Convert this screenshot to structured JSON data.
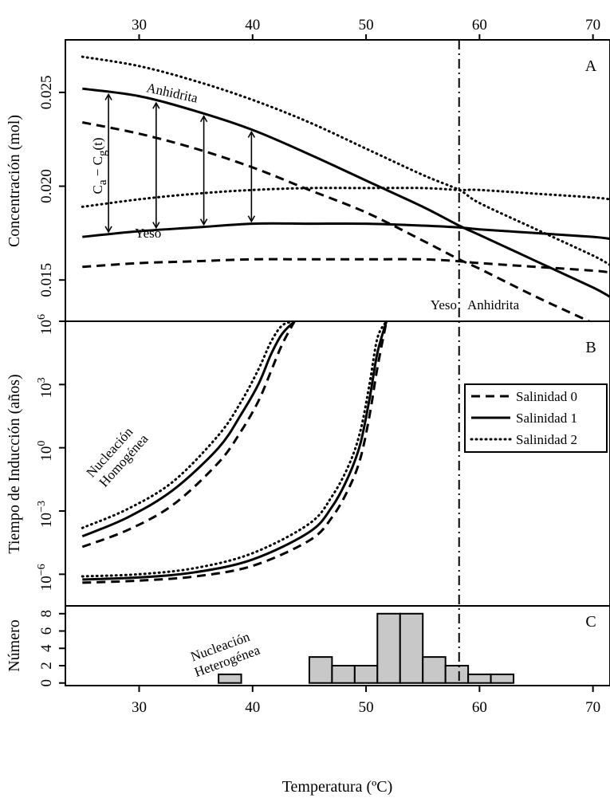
{
  "chart_data": [
    {
      "panel": "A",
      "type": "line",
      "ylabel": "Concentración (mol)",
      "xlim": [
        23.5,
        71.5
      ],
      "ylim": [
        0.0128,
        0.0278
      ],
      "x_ticks": [
        30,
        40,
        50,
        60,
        70
      ],
      "y_ticks": [
        0.015,
        0.02,
        0.025
      ],
      "y_tick_labels": [
        "0.015",
        "0.020",
        "0.025"
      ],
      "x": [
        25,
        30,
        35,
        40,
        45,
        50,
        55,
        58.2,
        60,
        65,
        70,
        71.5
      ],
      "series": [
        {
          "group": "Anhidrita",
          "salinidad": 0,
          "style": "dashed",
          "values": [
            0.0234,
            0.0228,
            0.022,
            0.021,
            0.0198,
            0.0186,
            0.0171,
            0.0161,
            0.0156,
            0.0141,
            0.0127,
            0.0122
          ]
        },
        {
          "group": "Anhidrita",
          "salinidad": 1,
          "style": "solid",
          "values": [
            0.0252,
            0.0248,
            0.024,
            0.023,
            0.0217,
            0.0203,
            0.0189,
            0.0179,
            0.0174,
            0.016,
            0.0146,
            0.0141
          ]
        },
        {
          "group": "Anhidrita",
          "salinidad": 2,
          "style": "dotted",
          "values": [
            0.0269,
            0.0264,
            0.0256,
            0.0246,
            0.0234,
            0.022,
            0.0206,
            0.0198,
            0.0191,
            0.0177,
            0.0163,
            0.0158
          ]
        },
        {
          "group": "Yeso",
          "salinidad": 0,
          "style": "dashed",
          "values": [
            0.0157,
            0.0159,
            0.016,
            0.0161,
            0.0161,
            0.0161,
            0.0161,
            0.016,
            0.0159,
            0.0157,
            0.0155,
            0.0154
          ]
        },
        {
          "group": "Yeso",
          "salinidad": 1,
          "style": "solid",
          "values": [
            0.0173,
            0.0176,
            0.0178,
            0.018,
            0.018,
            0.018,
            0.0179,
            0.0178,
            0.0177,
            0.0175,
            0.0173,
            0.0172
          ]
        },
        {
          "group": "Yeso",
          "salinidad": 2,
          "style": "dotted",
          "values": [
            0.0189,
            0.0193,
            0.0196,
            0.0198,
            0.0199,
            0.0199,
            0.0199,
            0.0198,
            0.0198,
            0.0196,
            0.0194,
            0.0193
          ]
        }
      ],
      "arrows_x": [
        27.3,
        31.5,
        35.7,
        39.9
      ],
      "transition_x": 58.2,
      "labels": {
        "anhydrite": "Anhidrita",
        "gypsum": "Yeso",
        "left_region": "Yeso",
        "right_region": "Anhidrita",
        "ca": "C",
        "ca_sub": "a",
        "minus": " − ",
        "cg": "C",
        "cg_sub": "g",
        "cg_t": "(t)"
      }
    },
    {
      "panel": "B",
      "type": "line",
      "ylabel": "Tiempo de Inducción (años)",
      "y_scale": "log10",
      "ylim_exp": [
        -7.5,
        6
      ],
      "y_ticks_exp": [
        -6,
        -3,
        0,
        3,
        6
      ],
      "y_tick_base": "10",
      "y_tick_sups": [
        "−6",
        "−3",
        "0",
        "3",
        "6"
      ],
      "x_homo": [
        25,
        29,
        33,
        37,
        39,
        40.5,
        41.6,
        42.6,
        43.7
      ],
      "homogenea": [
        {
          "salinidad": 0,
          "style": "dashed",
          "values_exp": [
            -4.7,
            -3.9,
            -2.7,
            -0.7,
            0.8,
            2.2,
            3.6,
            4.9,
            6.0
          ]
        },
        {
          "salinidad": 1,
          "style": "solid",
          "values_exp": [
            -4.2,
            -3.3,
            -2.0,
            0.0,
            1.6,
            3.0,
            4.4,
            5.4,
            6.0
          ]
        },
        {
          "salinidad": 2,
          "style": "dotted",
          "values_exp": [
            -3.8,
            -2.9,
            -1.6,
            0.6,
            2.2,
            3.7,
            5.0,
            5.8,
            6.0
          ]
        }
      ],
      "x_hetero": [
        25,
        30,
        35,
        40,
        45,
        47,
        48.5,
        49.5,
        50.3,
        51.0,
        51.8
      ],
      "heterogenea": [
        {
          "salinidad": 0,
          "style": "dashed",
          "values_exp": [
            -6.4,
            -6.3,
            -6.1,
            -5.6,
            -4.4,
            -3.3,
            -1.9,
            -0.5,
            1.5,
            3.8,
            6.0
          ]
        },
        {
          "salinidad": 1,
          "style": "solid",
          "values_exp": [
            -6.25,
            -6.15,
            -5.9,
            -5.3,
            -4.0,
            -2.8,
            -1.3,
            0.2,
            2.3,
            4.5,
            6.0
          ]
        },
        {
          "salinidad": 2,
          "style": "dotted",
          "values_exp": [
            -6.1,
            -6.0,
            -5.7,
            -5.0,
            -3.6,
            -2.3,
            -0.8,
            0.8,
            3.0,
            5.2,
            6.0
          ]
        }
      ],
      "labels": {
        "homo_1": "Nucleación",
        "homo_2": "Homogénea",
        "hetero_1": "Nucleación",
        "hetero_2": "Heterogénea"
      },
      "legend": [
        {
          "name": "Salinidad 0",
          "style": "dashed"
        },
        {
          "name": "Salinidad 1",
          "style": "solid"
        },
        {
          "name": "Salinidad 2",
          "style": "dotted"
        }
      ],
      "legend_position": "right"
    },
    {
      "panel": "C",
      "type": "bar",
      "ylabel": "Número",
      "xlabel": "Temperatura (ºC)",
      "ylim": [
        -0.3,
        8.9
      ],
      "y_ticks": [
        0,
        2,
        4,
        6,
        8
      ],
      "bin_width": 2,
      "bars": [
        {
          "x0": 37,
          "count": 1
        },
        {
          "x0": 45,
          "count": 3
        },
        {
          "x0": 47,
          "count": 2
        },
        {
          "x0": 49,
          "count": 2
        },
        {
          "x0": 51,
          "count": 8
        },
        {
          "x0": 53,
          "count": 8
        },
        {
          "x0": 55,
          "count": 3
        },
        {
          "x0": 57,
          "count": 2
        },
        {
          "x0": 59,
          "count": 1
        },
        {
          "x0": 61,
          "count": 1
        }
      ],
      "bar_fill": "#c8c8c8"
    }
  ]
}
